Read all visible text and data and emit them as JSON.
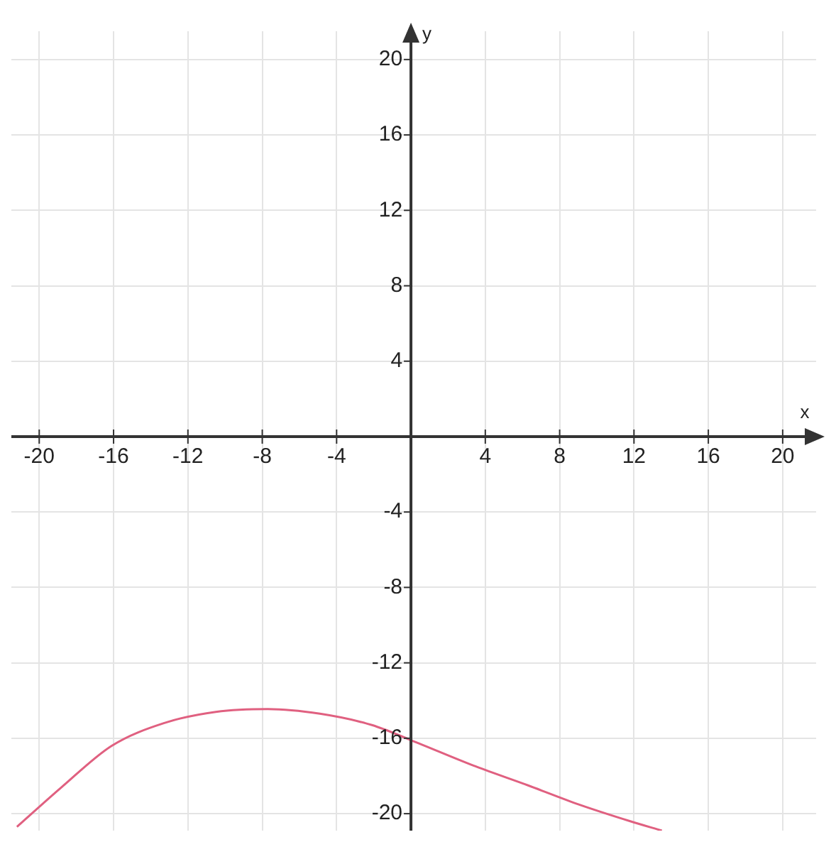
{
  "chart_data": {
    "type": "line",
    "xlabel": "x",
    "ylabel": "y",
    "x": [
      -21.2,
      -18.8,
      -16.1,
      -13.3,
      -10.5,
      -7.7,
      -4.9,
      -2.1,
      0,
      3.5,
      6.3,
      9.0,
      11.8,
      13.5
    ],
    "series": [
      {
        "color": "#e06080",
        "values": [
          -20.7,
          -18.6,
          -16.4,
          -15.2,
          -14.6,
          -14.45,
          -14.7,
          -15.3,
          -16.1,
          -17.5,
          -18.5,
          -19.5,
          -20.4,
          -20.9
        ]
      }
    ],
    "xlim": [
      -21.5,
      21.8
    ],
    "ylim": [
      -20.9,
      21.5
    ],
    "xticks": [
      -20,
      -16,
      -12,
      -8,
      -4,
      {
        "value": 0,
        "label": null
      },
      4,
      8,
      12,
      16,
      20
    ],
    "yticks": [
      -20,
      -16,
      -12,
      -8,
      -4,
      {
        "value": 0,
        "label": null
      },
      4,
      8,
      12,
      16,
      20
    ],
    "grid": true,
    "legend": false,
    "marker": "none",
    "line_style": "solid"
  }
}
